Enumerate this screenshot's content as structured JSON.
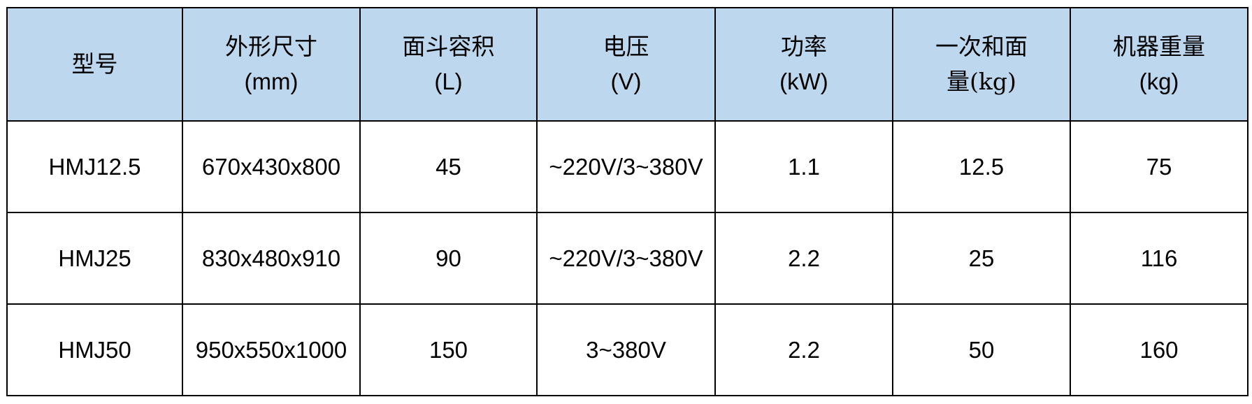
{
  "header_bg": "#BDD7EE",
  "columns": [
    {
      "title": "型号",
      "unit": ""
    },
    {
      "title": "外形尺寸",
      "unit": "(mm)"
    },
    {
      "title": "面斗容积",
      "unit": "(L)"
    },
    {
      "title": "电压",
      "unit": "(V)"
    },
    {
      "title": "功率",
      "unit": "(kW)"
    },
    {
      "title": "一次和面",
      "unit": "量(kg)"
    },
    {
      "title": "机器重量",
      "unit": "(kg)"
    }
  ],
  "rows": [
    [
      "HMJ12.5",
      "670x430x800",
      "45",
      "~220V/3~380V",
      "1.1",
      "12.5",
      "75"
    ],
    [
      "HMJ25",
      "830x480x910",
      "90",
      "~220V/3~380V",
      "2.2",
      "25",
      "116"
    ],
    [
      "HMJ50",
      "950x550x1000",
      "150",
      "3~380V",
      "2.2",
      "50",
      "160"
    ]
  ]
}
